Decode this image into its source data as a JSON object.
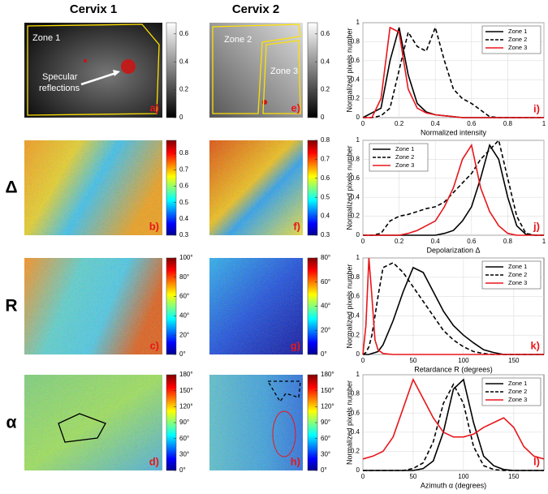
{
  "figure": {
    "columns": [
      "Cervix 1",
      "Cervix 2"
    ],
    "rows": [
      "Δ",
      "R",
      "α"
    ],
    "panels": [
      "a)",
      "b)",
      "c)",
      "d)",
      "e)",
      "f)",
      "g)",
      "h)"
    ],
    "zones": [
      "Zone 1",
      "Zone 2",
      "Zone 3"
    ],
    "specular": [
      "Specular",
      "reflections"
    ],
    "colorbars": [
      {
        "colormap": "gray",
        "lim": [
          0,
          0.68
        ],
        "ticks": [
          0,
          0.2,
          0.4,
          0.6
        ]
      },
      {
        "colormap": "jet",
        "lim": [
          0.3,
          0.88
        ],
        "ticks": [
          0.3,
          0.4,
          0.5,
          0.6,
          0.7,
          0.8
        ]
      },
      {
        "colormap": "jet",
        "lim": [
          0,
          100
        ],
        "ticks": [
          {
            "value": 0,
            "label": "0°"
          },
          {
            "value": 20,
            "label": "20°"
          },
          {
            "value": 40,
            "label": "40°"
          },
          {
            "value": 60,
            "label": "60°"
          },
          {
            "value": 80,
            "label": "80°"
          },
          {
            "value": 100,
            "label": "100°"
          }
        ]
      },
      {
        "colormap": "jet",
        "lim": [
          0,
          180
        ],
        "ticks": [
          {
            "value": 0,
            "label": "0°"
          },
          {
            "value": 30,
            "label": "30°"
          },
          {
            "value": 60,
            "label": "60°"
          },
          {
            "value": 90,
            "label": "90°"
          },
          {
            "value": 120,
            "label": "120°"
          },
          {
            "value": 150,
            "label": "150°"
          },
          {
            "value": 180,
            "label": "180°"
          }
        ]
      },
      {
        "colormap": "gray",
        "lim": [
          0,
          0.68
        ],
        "ticks": [
          0,
          0.2,
          0.4,
          0.6
        ]
      },
      {
        "colormap": "jet",
        "lim": [
          0.3,
          0.8
        ],
        "ticks": [
          0.3,
          0.4,
          0.5,
          0.6,
          0.7,
          0.8
        ]
      },
      {
        "colormap": "jet",
        "lim": [
          0,
          80
        ],
        "ticks": [
          {
            "value": 0,
            "label": "0°"
          },
          {
            "value": 20,
            "label": "20°"
          },
          {
            "value": 40,
            "label": "40°"
          },
          {
            "value": 60,
            "label": "60°"
          },
          {
            "value": 80,
            "label": "80°"
          }
        ]
      },
      {
        "colormap": "jet",
        "lim": [
          0,
          180
        ],
        "ticks": [
          {
            "value": 0,
            "label": "0°"
          },
          {
            "value": 30,
            "label": "30°"
          },
          {
            "value": 60,
            "label": "60°"
          },
          {
            "value": 90,
            "label": "90°"
          },
          {
            "value": 120,
            "label": "120°"
          },
          {
            "value": 150,
            "label": "150°"
          },
          {
            "value": 180,
            "label": "180°"
          }
        ]
      }
    ]
  },
  "chart_data": [
    {
      "type": "line",
      "panel_label": "i)",
      "xlabel": "Normalized intensity",
      "ylabel": "Normalized pixels number",
      "x": [
        0,
        0.05,
        0.1,
        0.15,
        0.2,
        0.25,
        0.3,
        0.35,
        0.4,
        0.45,
        0.5,
        0.55,
        0.6,
        0.65,
        0.7,
        0.75,
        0.8,
        0.85,
        0.9,
        0.95,
        1
      ],
      "xlim": [
        0,
        1
      ],
      "xticks": [
        0,
        0.2,
        0.4,
        0.6,
        0.8,
        1
      ],
      "ylim": [
        0,
        1
      ],
      "yticks": [
        0,
        0.2,
        0.4,
        0.6,
        0.8,
        1
      ],
      "grid": true,
      "legend": "upper right",
      "series": [
        {
          "name": "Zone 1",
          "color": "#000000",
          "dash": false,
          "values": [
            0,
            0.05,
            0.1,
            0.6,
            0.95,
            0.45,
            0.15,
            0.06,
            0.03,
            0.02,
            0.01,
            0,
            0,
            0,
            0,
            0,
            0,
            0,
            0,
            0,
            0
          ]
        },
        {
          "name": "Zone 2",
          "color": "#000000",
          "dash": true,
          "values": [
            0,
            0,
            0.02,
            0.1,
            0.5,
            0.9,
            0.75,
            0.7,
            0.95,
            0.6,
            0.3,
            0.2,
            0.15,
            0.08,
            0.01,
            0,
            0,
            0,
            0,
            0,
            0
          ]
        },
        {
          "name": "Zone 3",
          "color": "#e8161b",
          "dash": false,
          "values": [
            0,
            0,
            0.2,
            0.95,
            0.9,
            0.3,
            0.1,
            0.05,
            0.03,
            0.02,
            0.01,
            0,
            0,
            0,
            0,
            0,
            0,
            0,
            0,
            0,
            0
          ]
        }
      ]
    },
    {
      "type": "line",
      "panel_label": "j)",
      "xlabel": "Depolarization Δ",
      "ylabel": "Normalized pixels number",
      "x": [
        0,
        0.05,
        0.1,
        0.15,
        0.2,
        0.25,
        0.3,
        0.35,
        0.4,
        0.45,
        0.5,
        0.55,
        0.6,
        0.65,
        0.7,
        0.75,
        0.8,
        0.85,
        0.9,
        0.95,
        1
      ],
      "xlim": [
        0,
        1
      ],
      "xticks": [
        0,
        0.2,
        0.4,
        0.6,
        0.8,
        1
      ],
      "ylim": [
        0,
        1
      ],
      "yticks": [
        0,
        0.2,
        0.4,
        0.6,
        0.8,
        1
      ],
      "grid": true,
      "legend": "upper left",
      "series": [
        {
          "name": "Zone 1",
          "color": "#000000",
          "dash": false,
          "values": [
            0,
            0,
            0,
            0,
            0,
            0,
            0,
            0,
            0,
            0.02,
            0.05,
            0.15,
            0.3,
            0.6,
            0.95,
            0.8,
            0.4,
            0.1,
            0.01,
            0,
            0
          ]
        },
        {
          "name": "Zone 2",
          "color": "#000000",
          "dash": true,
          "values": [
            0,
            0,
            0.02,
            0.15,
            0.2,
            0.22,
            0.25,
            0.28,
            0.3,
            0.35,
            0.45,
            0.55,
            0.65,
            0.8,
            0.9,
            1,
            0.6,
            0.2,
            0.02,
            0,
            0
          ]
        },
        {
          "name": "Zone 3",
          "color": "#e8161b",
          "dash": false,
          "values": [
            0,
            0,
            0,
            0,
            0,
            0.02,
            0.05,
            0.1,
            0.15,
            0.3,
            0.5,
            0.8,
            0.95,
            0.5,
            0.25,
            0.1,
            0.02,
            0,
            0,
            0,
            0
          ]
        }
      ]
    },
    {
      "type": "line",
      "panel_label": "k)",
      "xlabel": "Retardance R (degrees)",
      "ylabel": "Normalized pixels number",
      "x": [
        0,
        3,
        6,
        9,
        12,
        15,
        20,
        30,
        40,
        50,
        60,
        70,
        80,
        90,
        100,
        110,
        120,
        130,
        140,
        150,
        160,
        170,
        180
      ],
      "xlim": [
        0,
        180
      ],
      "xticks": [
        0,
        50,
        100,
        150
      ],
      "ylim": [
        0,
        1
      ],
      "yticks": [
        0,
        0.2,
        0.4,
        0.6,
        0.8,
        1
      ],
      "grid": true,
      "legend": "upper right",
      "series": [
        {
          "name": "Zone 1",
          "color": "#000000",
          "dash": false,
          "values": [
            0,
            0,
            0,
            0.01,
            0.02,
            0.03,
            0.1,
            0.35,
            0.65,
            0.9,
            0.85,
            0.65,
            0.45,
            0.3,
            0.2,
            0.12,
            0.05,
            0.02,
            0,
            0,
            0,
            0,
            0
          ]
        },
        {
          "name": "Zone 2",
          "color": "#000000",
          "dash": true,
          "values": [
            0,
            0.02,
            0.08,
            0.2,
            0.4,
            0.6,
            0.9,
            0.95,
            0.85,
            0.7,
            0.55,
            0.4,
            0.25,
            0.15,
            0.08,
            0.03,
            0.01,
            0,
            0,
            0,
            0,
            0,
            0
          ]
        },
        {
          "name": "Zone 3",
          "color": "#e8161b",
          "dash": false,
          "values": [
            0,
            0.3,
            1,
            0.6,
            0.15,
            0.05,
            0.01,
            0,
            0,
            0,
            0,
            0,
            0,
            0,
            0,
            0,
            0,
            0,
            0,
            0,
            0,
            0,
            0
          ]
        }
      ]
    },
    {
      "type": "line",
      "panel_label": "l)",
      "xlabel": "Azimuth α (degrees)",
      "ylabel": "Normalized pixels number",
      "x": [
        0,
        10,
        20,
        30,
        40,
        50,
        60,
        70,
        80,
        90,
        100,
        110,
        120,
        130,
        140,
        150,
        160,
        170,
        180
      ],
      "xlim": [
        0,
        180
      ],
      "xticks": [
        0,
        50,
        100,
        150
      ],
      "ylim": [
        0,
        1
      ],
      "yticks": [
        0,
        0.2,
        0.4,
        0.6,
        0.8,
        1
      ],
      "grid": true,
      "legend": "upper right",
      "series": [
        {
          "name": "Zone 1",
          "color": "#000000",
          "dash": false,
          "values": [
            0,
            0,
            0,
            0,
            0,
            0,
            0.02,
            0.1,
            0.4,
            0.85,
            0.95,
            0.5,
            0.15,
            0.05,
            0.01,
            0,
            0,
            0,
            0
          ]
        },
        {
          "name": "Zone 2",
          "color": "#000000",
          "dash": true,
          "values": [
            0,
            0,
            0,
            0,
            0,
            0.02,
            0.08,
            0.3,
            0.7,
            0.9,
            0.7,
            0.25,
            0.05,
            0.01,
            0,
            0,
            0,
            0,
            0
          ]
        },
        {
          "name": "Zone 3",
          "color": "#e8161b",
          "dash": false,
          "values": [
            0.12,
            0.15,
            0.2,
            0.35,
            0.65,
            0.95,
            0.75,
            0.55,
            0.4,
            0.35,
            0.35,
            0.38,
            0.45,
            0.5,
            0.55,
            0.45,
            0.25,
            0.15,
            0.12
          ]
        }
      ]
    }
  ]
}
